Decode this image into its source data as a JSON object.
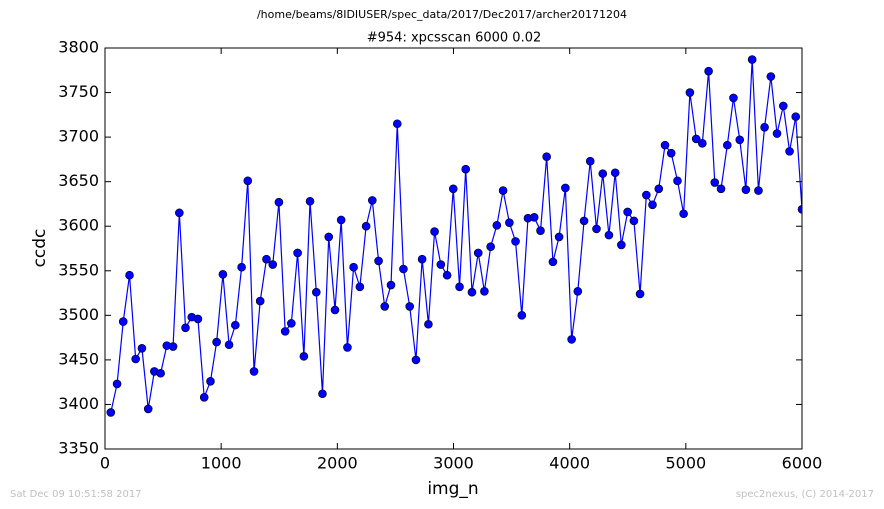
{
  "chart_data": {
    "type": "line",
    "title": "/home/beams/8IDIUSER/spec_data/2017/Dec2017/archer20171204",
    "subtitle": "#954: xpcsscan 6000 0.02",
    "timestamp": "Sat Dec 09 10:51:58 2017",
    "credit": "spec2nexus, (C) 2014-2017",
    "xlabel": "img_n",
    "ylabel": "ccdc",
    "xlim": [
      0,
      6000
    ],
    "xticks": [
      0,
      1000,
      2000,
      3000,
      4000,
      5000,
      6000
    ],
    "ylim": [
      3350,
      3800
    ],
    "yticks": [
      3350,
      3400,
      3450,
      3500,
      3550,
      3600,
      3650,
      3700,
      3750,
      3800
    ],
    "grid": false,
    "x": [
      50,
      104,
      157,
      211,
      264,
      318,
      372,
      425,
      479,
      532,
      586,
      640,
      693,
      747,
      800,
      854,
      908,
      961,
      1015,
      1068,
      1122,
      1176,
      1229,
      1283,
      1336,
      1390,
      1444,
      1497,
      1551,
      1604,
      1658,
      1712,
      1765,
      1819,
      1872,
      1926,
      1980,
      2033,
      2087,
      2140,
      2194,
      2248,
      2301,
      2355,
      2408,
      2462,
      2516,
      2569,
      2623,
      2677,
      2730,
      2784,
      2837,
      2891,
      2945,
      2998,
      3052,
      3105,
      3159,
      3213,
      3266,
      3320,
      3373,
      3427,
      3481,
      3534,
      3588,
      3641,
      3695,
      3749,
      3802,
      3856,
      3909,
      3963,
      4017,
      4070,
      4124,
      4177,
      4231,
      4285,
      4338,
      4392,
      4445,
      4499,
      4553,
      4606,
      4660,
      4713,
      4767,
      4821,
      4874,
      4928,
      4981,
      5035,
      5089,
      5142,
      5196,
      5249,
      5303,
      5357,
      5410,
      5464,
      5517,
      5571,
      5625,
      5678,
      5732,
      5785,
      5839,
      5893,
      5946,
      6000
    ],
    "series": [
      {
        "name": "ccdc",
        "color": "#0000ff",
        "values": [
          3391,
          3423,
          3493,
          3545,
          3451,
          3463,
          3395,
          3437,
          3435,
          3466,
          3465,
          3615,
          3486,
          3498,
          3496,
          3408,
          3426,
          3470,
          3546,
          3467,
          3489,
          3554,
          3651,
          3437,
          3516,
          3563,
          3557,
          3627,
          3482,
          3491,
          3570,
          3454,
          3628,
          3526,
          3412,
          3588,
          3506,
          3607,
          3464,
          3554,
          3532,
          3600,
          3629,
          3561,
          3510,
          3534,
          3715,
          3552,
          3510,
          3450,
          3563,
          3490,
          3594,
          3557,
          3545,
          3642,
          3532,
          3664,
          3526,
          3570,
          3527,
          3577,
          3601,
          3640,
          3604,
          3583,
          3500,
          3609,
          3610,
          3595,
          3678,
          3560,
          3588,
          3643,
          3473,
          3527,
          3606,
          3673,
          3597,
          3659,
          3590,
          3660,
          3579,
          3616,
          3606,
          3524,
          3635,
          3624,
          3642,
          3691,
          3682,
          3651,
          3614,
          3750,
          3698,
          3693,
          3774,
          3649,
          3642,
          3691,
          3744,
          3697,
          3641,
          3787,
          3640,
          3711,
          3768,
          3704,
          3735,
          3684,
          3723,
          3619
        ]
      }
    ]
  }
}
